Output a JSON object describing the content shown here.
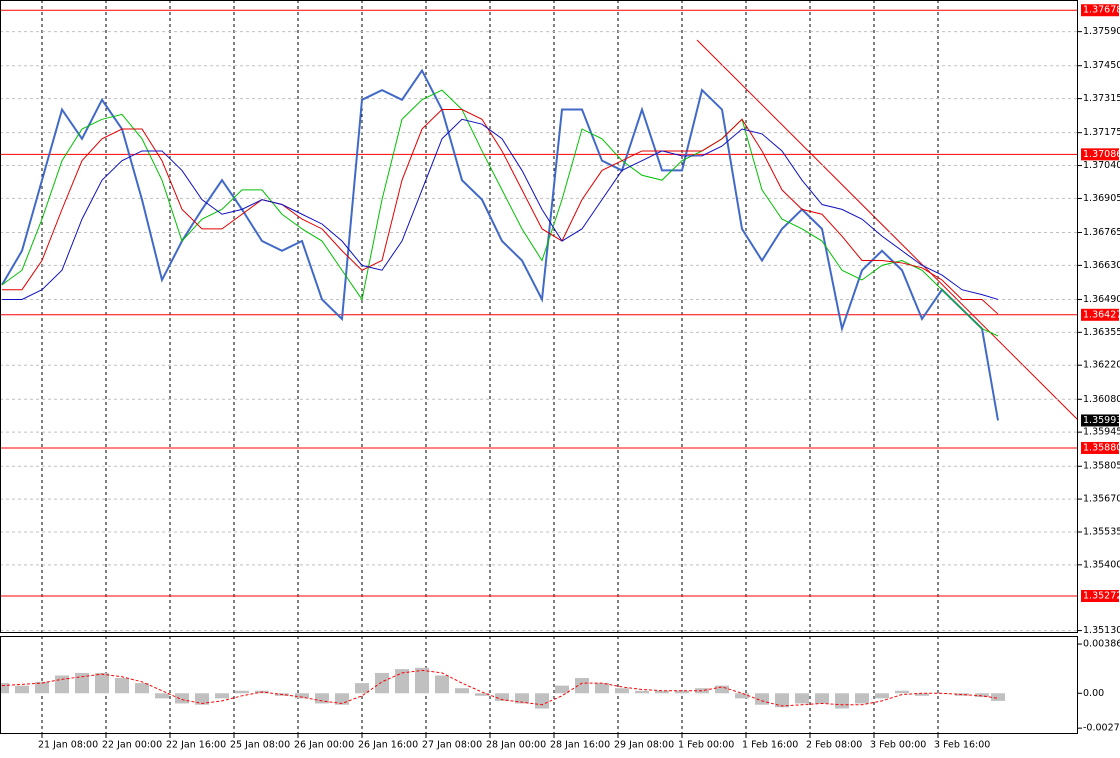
{
  "chart_data": [
    {
      "type": "line",
      "x": [
        -10,
        -5,
        0,
        5,
        10,
        15,
        20,
        25,
        30,
        35,
        40,
        45,
        50,
        55,
        60,
        65,
        70,
        75,
        80,
        85,
        90,
        95,
        100,
        105,
        110,
        115,
        120,
        125,
        130,
        135,
        140,
        145,
        150,
        155,
        160,
        165,
        170,
        175,
        180,
        185,
        190,
        195,
        200,
        205,
        210,
        215,
        220,
        225,
        230,
        235,
        239
      ],
      "series": [
        {
          "color": "#4169c8",
          "values": [
            1.3655,
            1.3669,
            1.3698,
            1.3727,
            1.3715,
            1.3731,
            1.3719,
            1.369,
            1.3657,
            1.3673,
            1.3686,
            1.3698,
            1.3686,
            1.3673,
            1.3669,
            1.3673,
            1.3649,
            1.3641,
            1.3731,
            1.3735,
            1.3731,
            1.3743,
            1.3727,
            1.3698,
            1.369,
            1.3673,
            1.3665,
            1.3649,
            1.3727,
            1.3727,
            1.3706,
            1.3702,
            1.3727,
            1.3702,
            1.3702,
            1.3735,
            1.3727,
            1.3678,
            1.3665,
            1.3678,
            1.3686,
            1.3678,
            1.3637,
            1.3661,
            1.3669,
            1.3661,
            1.3641,
            1.3653,
            1.3645,
            1.3637,
            1.35993
          ]
        },
        {
          "color": "#00c000",
          "values": [
            1.3655,
            1.3661,
            1.3682,
            1.3706,
            1.3719,
            1.3723,
            1.3725,
            1.3715,
            1.3698,
            1.3673,
            1.3682,
            1.3686,
            1.3694,
            1.3694,
            1.3684,
            1.3678,
            1.3673,
            1.3661,
            1.3649,
            1.369,
            1.3723,
            1.3731,
            1.3735,
            1.3727,
            1.371,
            1.3694,
            1.3678,
            1.3665,
            1.369,
            1.3719,
            1.3715,
            1.3706,
            1.37,
            1.3698,
            1.3706,
            1.371,
            1.3715,
            1.3723,
            1.3694,
            1.3682,
            1.3678,
            1.3673,
            1.3661,
            1.3657,
            1.3663,
            1.3665,
            1.3661,
            1.3653,
            1.3645,
            1.3637,
            1.3634
          ]
        },
        {
          "color": "#e00000",
          "values": [
            1.3653,
            1.3653,
            1.3665,
            1.3686,
            1.3706,
            1.3715,
            1.3719,
            1.3719,
            1.3706,
            1.3686,
            1.3678,
            1.3678,
            1.3684,
            1.369,
            1.3688,
            1.3682,
            1.3678,
            1.3669,
            1.3661,
            1.3665,
            1.3698,
            1.3719,
            1.3727,
            1.3727,
            1.3723,
            1.371,
            1.3694,
            1.3678,
            1.3673,
            1.369,
            1.3702,
            1.3706,
            1.371,
            1.371,
            1.371,
            1.371,
            1.3715,
            1.3723,
            1.371,
            1.3694,
            1.3686,
            1.3684,
            1.3675,
            1.3665,
            1.3665,
            1.3664,
            1.3662,
            1.3657,
            1.3649,
            1.3649,
            1.3643
          ]
        },
        {
          "color": "#1010c0",
          "values": [
            1.3649,
            1.3649,
            1.3653,
            1.3661,
            1.3682,
            1.3698,
            1.3706,
            1.371,
            1.371,
            1.3702,
            1.369,
            1.3684,
            1.3686,
            1.369,
            1.3688,
            1.3684,
            1.368,
            1.3673,
            1.3663,
            1.3661,
            1.3673,
            1.3694,
            1.3715,
            1.3723,
            1.3721,
            1.3715,
            1.3702,
            1.3686,
            1.3673,
            1.3678,
            1.369,
            1.3702,
            1.3706,
            1.371,
            1.3708,
            1.3708,
            1.3712,
            1.3719,
            1.3717,
            1.371,
            1.3698,
            1.3688,
            1.3686,
            1.3682,
            1.3675,
            1.3669,
            1.3663,
            1.3659,
            1.3653,
            1.3651,
            1.3649
          ]
        }
      ],
      "xlim": [
        -10.5,
        259
      ],
      "xticks": [
        {
          "value": 0,
          "label": "21 Jan 08:00"
        },
        {
          "value": 16,
          "label": "22 Jan 00:00"
        },
        {
          "value": 32,
          "label": "22 Jan 16:00"
        },
        {
          "value": 48,
          "label": "25 Jan 08:00"
        },
        {
          "value": 64,
          "label": "26 Jan 00:00"
        },
        {
          "value": 80,
          "label": "26 Jan 16:00"
        },
        {
          "value": 96,
          "label": "27 Jan 08:00"
        },
        {
          "value": 112,
          "label": "28 Jan 00:00"
        },
        {
          "value": 128,
          "label": "28 Jan 16:00"
        },
        {
          "value": 144,
          "label": "29 Jan 08:00"
        },
        {
          "value": 160,
          "label": "1 Feb 00:00"
        },
        {
          "value": 176,
          "label": "1 Feb 16:00"
        },
        {
          "value": 192,
          "label": "2 Feb 08:00"
        },
        {
          "value": 208,
          "label": "3 Feb 00:00"
        },
        {
          "value": 224,
          "label": "3 Feb 16:00"
        }
      ],
      "ylim": [
        1.3512,
        1.3772
      ],
      "yticks": [
        {
          "value": 1.3759,
          "label": "1.37590"
        },
        {
          "value": 1.3745,
          "label": "1.37450"
        },
        1.37315,
        1.37175,
        {
          "value": 1.3704,
          "label": "1.37040"
        },
        1.36905,
        1.36765,
        {
          "value": 1.3663,
          "label": "1.36630"
        },
        {
          "value": 1.3649,
          "label": "1.36490"
        },
        1.36355,
        {
          "value": 1.3622,
          "label": "1.36220"
        },
        {
          "value": 1.3608,
          "label": "1.36080"
        },
        1.35945,
        1.35805,
        {
          "value": 1.3567,
          "label": "1.35670"
        },
        1.35535,
        {
          "value": 1.354,
          "label": "1.35400"
        },
        {
          "value": 1.3513,
          "label": "1.35130"
        }
      ],
      "grid": true,
      "levels": [
        1.37678,
        1.37086,
        1.36427,
        {
          "value": 1.3588,
          "label": "1.35880"
        },
        1.35272
      ],
      "level_color": "#ff0000",
      "current_price": 1.35993
    },
    {
      "type": "bar",
      "x": [
        -10,
        -5,
        0,
        5,
        10,
        15,
        20,
        25,
        30,
        35,
        40,
        45,
        50,
        55,
        60,
        65,
        70,
        75,
        80,
        85,
        90,
        95,
        100,
        105,
        110,
        115,
        120,
        125,
        130,
        135,
        140,
        145,
        150,
        155,
        160,
        165,
        170,
        175,
        180,
        185,
        190,
        195,
        200,
        205,
        210,
        215,
        220,
        225,
        230,
        235,
        239
      ],
      "values": [
        0.0008,
        0.0006,
        0.0009,
        0.0014,
        0.0016,
        0.0016,
        0.0012,
        0.0008,
        -0.0004,
        -0.0008,
        -0.0009,
        -0.0004,
        0.0002,
        0.0002,
        -0.0002,
        -0.0004,
        -0.0008,
        -0.0009,
        0.0008,
        0.0016,
        0.0019,
        0.002,
        0.0014,
        0.0004,
        -0.0002,
        -0.0006,
        -0.0008,
        -0.0012,
        0.0006,
        0.0012,
        0.0008,
        0.0004,
        0.0002,
        0.0002,
        0.0002,
        0.0004,
        0.0006,
        -0.0004,
        -0.0009,
        -0.0011,
        -0.0008,
        -0.0008,
        -0.0012,
        -0.0008,
        -0.0004,
        0.0002,
        -0.0002,
        0,
        -0.0002,
        -0.0003,
        -0.0006
      ],
      "color": "#c0c0c0",
      "line": {
        "color": "#ff0000",
        "dashed": true,
        "values": [
          0.0006,
          0.0007,
          0.0008,
          0.0011,
          0.0013,
          0.0015,
          0.0013,
          0.0009,
          0.0002,
          -0.0005,
          -0.0008,
          -0.0006,
          -0.0002,
          0.0001,
          -0.0001,
          -0.0003,
          -0.0006,
          -0.0008,
          -0.0002,
          0.0009,
          0.0016,
          0.0018,
          0.0016,
          0.0008,
          0.0001,
          -0.0005,
          -0.0007,
          -0.0009,
          -0.0002,
          0.0008,
          0.0008,
          0.0005,
          0.0003,
          0.0002,
          0.0002,
          0.0002,
          0.0005,
          0,
          -0.0006,
          -0.001,
          -0.0009,
          -0.0008,
          -0.0009,
          -0.0009,
          -0.0006,
          -0.0001,
          0,
          0,
          -0.0001,
          -0.0002,
          -0.0004
        ]
      },
      "xlim": [
        -10.5,
        259
      ],
      "ylim": [
        -0.0032,
        0.0045
      ],
      "yticks": [
        0.003868,
        {
          "value": 0,
          "label": "0.00"
        },
        -0.00274
      ]
    }
  ]
}
